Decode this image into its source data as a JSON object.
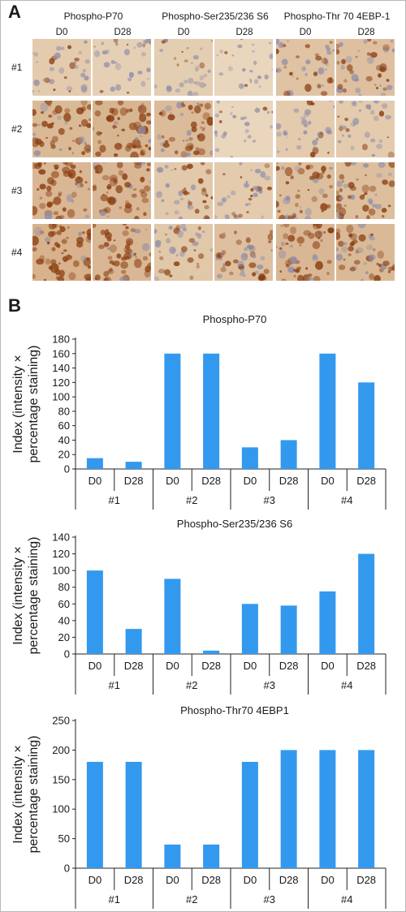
{
  "panel_a": {
    "letter": "A",
    "columns": [
      {
        "title": "Phospho-P70",
        "subs": [
          "D0",
          "D28"
        ]
      },
      {
        "title": "Phospho-Ser235/236 S6",
        "subs": [
          "D0",
          "D28"
        ]
      },
      {
        "title": "Phospho-Thr 70 4EBP-1",
        "subs": [
          "D0",
          "D28"
        ]
      }
    ],
    "rows": [
      "#1",
      "#2",
      "#3",
      "#4"
    ],
    "stain_intensity": [
      [
        0.35,
        0.25,
        0.3,
        0.1,
        0.55,
        0.6
      ],
      [
        0.75,
        0.85,
        0.7,
        0.12,
        0.35,
        0.35
      ],
      [
        0.8,
        0.8,
        0.4,
        0.35,
        0.65,
        0.65
      ],
      [
        0.9,
        0.8,
        0.45,
        0.6,
        0.8,
        0.75
      ]
    ],
    "colors": {
      "tissue": "#ecdcc4",
      "stain": "#8a3d10",
      "nuclei": "#8f8ea8"
    }
  },
  "panel_b": {
    "letter": "B"
  },
  "colors": {
    "bar": "#3399ee",
    "axis": "#222222"
  },
  "chart_data": [
    {
      "type": "bar",
      "title": "Phospho-P70",
      "ylabel": "Index (intensity ×\npercentage staining)",
      "ylim": [
        0,
        180
      ],
      "yticks": [
        0,
        20,
        40,
        60,
        80,
        100,
        120,
        140,
        160,
        180
      ],
      "categories": [
        "D0",
        "D28",
        "D0",
        "D28",
        "D0",
        "D28",
        "D0",
        "D28"
      ],
      "groups": [
        "#1",
        "#2",
        "#3",
        "#4"
      ],
      "values": [
        15,
        10,
        160,
        160,
        30,
        40,
        160,
        120
      ]
    },
    {
      "type": "bar",
      "title": "Phospho-Ser235/236 S6",
      "ylabel": "Index (intensity ×\npercentage staining)",
      "ylim": [
        0,
        140
      ],
      "yticks": [
        0,
        20,
        40,
        60,
        80,
        100,
        120,
        140
      ],
      "categories": [
        "D0",
        "D28",
        "D0",
        "D28",
        "D0",
        "D28",
        "D0",
        "D28"
      ],
      "groups": [
        "#1",
        "#2",
        "#3",
        "#4"
      ],
      "values": [
        100,
        30,
        90,
        4,
        60,
        58,
        75,
        120
      ]
    },
    {
      "type": "bar",
      "title": "Phospho-Thr70 4EBP1",
      "ylabel": "Index (intensity ×\npercentage staining)",
      "ylim": [
        0,
        250
      ],
      "yticks": [
        0,
        50,
        100,
        150,
        200,
        250
      ],
      "categories": [
        "D0",
        "D28",
        "D0",
        "D28",
        "D0",
        "D28",
        "D0",
        "D28"
      ],
      "groups": [
        "#1",
        "#2",
        "#3",
        "#4"
      ],
      "values": [
        180,
        180,
        40,
        40,
        180,
        200,
        200,
        200
      ]
    }
  ]
}
